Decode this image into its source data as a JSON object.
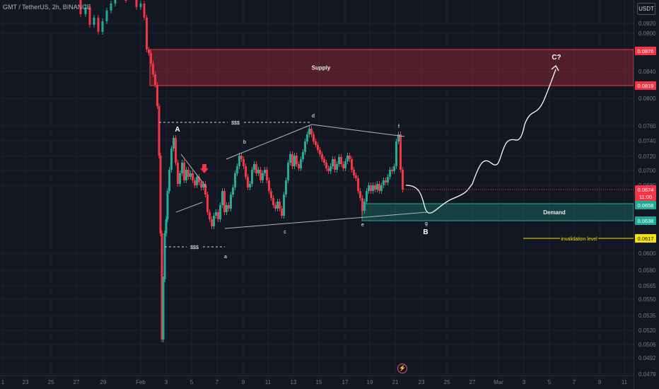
{
  "header": {
    "symbol_line": "GMT / TetherUS, 2h, BINANCE",
    "currency": "USDT"
  },
  "chart_data": {
    "type": "candlestick",
    "symbol": "GMT / TetherUS",
    "timeframe": "2h",
    "exchange": "BINANCE",
    "y_axis": {
      "ticks": [
        "0.0920",
        "0.0900",
        "0.0840",
        "0.0800",
        "0.0760",
        "0.0740",
        "0.0720",
        "0.0700",
        "0.0680",
        "0.0600",
        "0.0580",
        "0.0565",
        "0.0550",
        "0.0535",
        "0.0520",
        "0.0506",
        "0.0492",
        "0.0479"
      ],
      "price_labels": [
        {
          "text": "0.0876",
          "color": "#f23645"
        },
        {
          "text": "0.0819",
          "color": "#f23645"
        },
        {
          "text": "0.0674",
          "color": "#f23645"
        },
        {
          "text": "11:00",
          "color": "#f23645"
        },
        {
          "text": "0.0658",
          "color": "#22ab94"
        },
        {
          "text": "0.0638",
          "color": "#22ab94"
        },
        {
          "text": "0.0617",
          "color": "#f5e10a"
        }
      ]
    },
    "x_axis": {
      "ticks": [
        "1",
        "23",
        "25",
        "27",
        "29",
        "Feb",
        "3",
        "5",
        "7",
        "9",
        "11",
        "13",
        "15",
        "17",
        "19",
        "21",
        "23",
        "25",
        "27",
        "Mar",
        "3",
        "5",
        "7",
        "9",
        "11"
      ]
    },
    "zones": [
      {
        "name": "Supply",
        "top": 0.0876,
        "bottom": 0.0819,
        "color": "#f23645"
      },
      {
        "name": "Demand",
        "top": 0.0658,
        "bottom": 0.0638,
        "color": "#22ab94"
      }
    ],
    "levels": [
      {
        "name": "invalidation level",
        "price": 0.0617,
        "color": "#f5e10a"
      }
    ],
    "wave_labels": [
      "A",
      "B",
      "C?",
      "a",
      "b",
      "c",
      "d",
      "e",
      "f",
      "g"
    ],
    "liquidity_labels": [
      "$$$",
      "$$$"
    ],
    "last_price": 0.0674,
    "colors": {
      "up": "#22ab94",
      "down": "#f23645",
      "background": "#131722"
    }
  }
}
